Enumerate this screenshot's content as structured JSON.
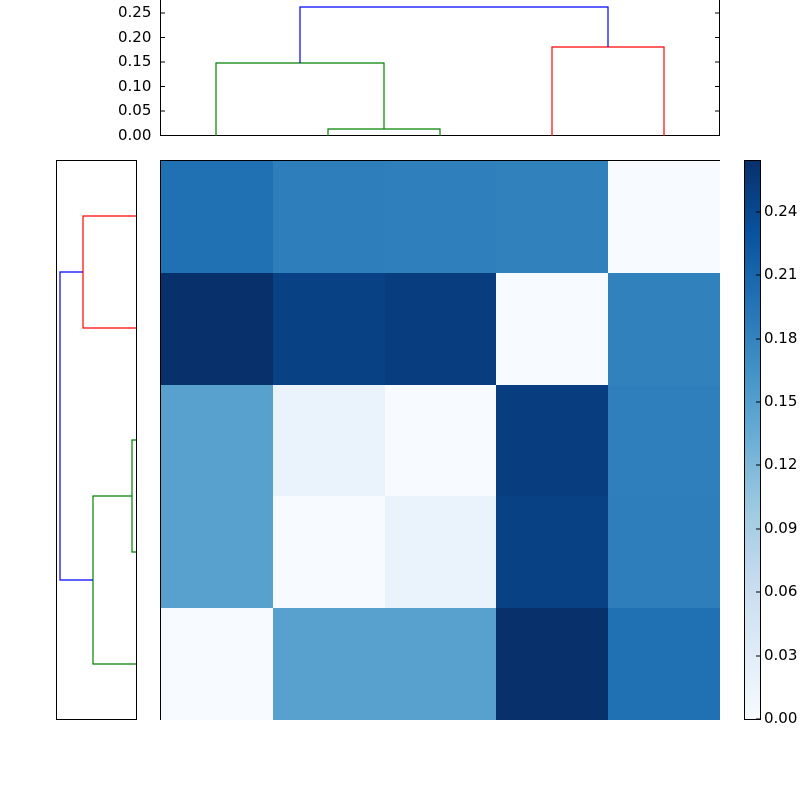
{
  "chart_data": {
    "type": "heatmap",
    "title": "",
    "description": "Clustered heatmap with top and left dendrograms and a colorbar",
    "colormap": "Blues",
    "matrix": [
      [
        0.205,
        0.19,
        0.188,
        0.185,
        0.005
      ],
      [
        0.262,
        0.232,
        0.238,
        0.005,
        0.185
      ],
      [
        0.135,
        0.018,
        0.005,
        0.238,
        0.188
      ],
      [
        0.135,
        0.005,
        0.018,
        0.232,
        0.19
      ],
      [
        0.005,
        0.135,
        0.135,
        0.262,
        0.205
      ]
    ],
    "cell_colors": [
      [
        "#2070b4",
        "#2e7ebc",
        "#2f7fbc",
        "#3181bd",
        "#f7fbff"
      ],
      [
        "#08306b",
        "#084285",
        "#083d7f",
        "#f7fbff",
        "#3181bd"
      ],
      [
        "#58a1cf",
        "#eaf2fb",
        "#f7fbff",
        "#083d7f",
        "#2f7fbc"
      ],
      [
        "#58a1cf",
        "#f7fbff",
        "#eaf2fb",
        "#084285",
        "#2e7ebc"
      ],
      [
        "#f7fbff",
        "#58a1cf",
        "#58a1cf",
        "#08306b",
        "#2070b4"
      ]
    ],
    "colorbar": {
      "min": 0.0,
      "max": 0.264,
      "ticks": [
        "0.00",
        "0.03",
        "0.06",
        "0.09",
        "0.12",
        "0.15",
        "0.18",
        "0.21",
        "0.24"
      ]
    },
    "top_dendrogram": {
      "ylim": [
        0,
        0.27
      ],
      "yticks": [
        "0.00",
        "0.05",
        "0.10",
        "0.15",
        "0.20",
        "0.25"
      ],
      "links": [
        {
          "color": "#008000",
          "left": 3,
          "right": 4,
          "height": 0.015
        },
        {
          "color": "#008000",
          "left": 1,
          "right": "3-4",
          "height": 0.15
        },
        {
          "color": "#ff0000",
          "left": 4.5,
          "right": 5.5,
          "height": 0.18
        },
        {
          "color": "#0000ff",
          "left": "green-cluster",
          "right": "red-cluster",
          "height": 0.265
        }
      ]
    },
    "left_dendrogram": {
      "links": [
        {
          "color": "#ff0000",
          "rows": [
            1,
            2
          ],
          "height": 0.18
        },
        {
          "color": "#008000",
          "rows": [
            3,
            4
          ],
          "height": 0.015
        },
        {
          "color": "#008000",
          "rows": [
            "3-4",
            5
          ],
          "height": 0.15
        },
        {
          "color": "#0000ff",
          "rows": [
            "red-cluster",
            "green-cluster"
          ],
          "height": 0.265
        }
      ]
    },
    "xlabel": "",
    "ylabel": ""
  }
}
